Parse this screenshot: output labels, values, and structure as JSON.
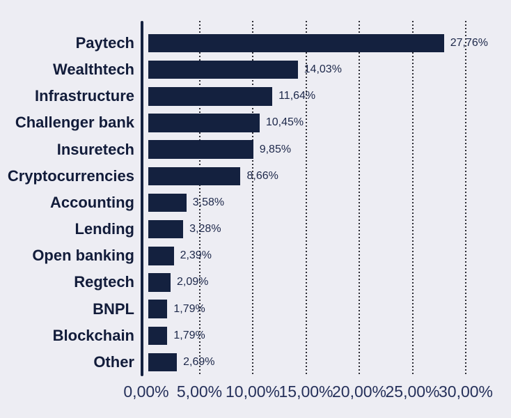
{
  "chart_data": {
    "type": "bar",
    "orientation": "horizontal",
    "categories": [
      "Paytech",
      "Wealthtech",
      "Infrastructure",
      "Challenger bank",
      "Insuretech",
      "Cryptocurrencies",
      "Accounting",
      "Lending",
      "Open banking",
      "Regtech",
      "BNPL",
      "Blockchain",
      "Other"
    ],
    "values": [
      27.76,
      14.03,
      11.64,
      10.45,
      9.85,
      8.66,
      3.58,
      3.28,
      2.39,
      2.09,
      1.79,
      1.79,
      2.69
    ],
    "value_labels": [
      "27,76%",
      "14,03%",
      "11,64%",
      "10,45%",
      "9,85%",
      "8,66%",
      "3,58%",
      "3,28%",
      "2,39%",
      "2,09%",
      "1,79%",
      "1,79%",
      "2,69%"
    ],
    "x_axis": {
      "tick_values": [
        0,
        5,
        10,
        15,
        20,
        25,
        30
      ],
      "tick_labels": [
        "0,00%",
        "5,00%",
        "10,00%",
        "15,00%",
        "20,00%",
        "25,00%",
        "30,00%"
      ],
      "range": [
        0,
        30
      ]
    },
    "grid": {
      "style": "dotted-vertical",
      "enabled": true
    },
    "legend": {
      "visible": false
    },
    "colors": {
      "background": "#EDEDF3",
      "bar": "#14213F",
      "axis_line": "#14213F",
      "category_text": "#121C3A",
      "value_text": "#1C2749",
      "tick_text": "#25305A",
      "grid_dot": "#2B2B33"
    }
  }
}
